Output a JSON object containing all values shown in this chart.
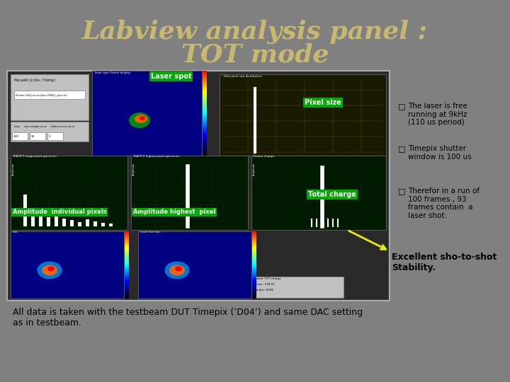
{
  "title_line1": "Labview analysis panel :",
  "title_line2": "TOT mode",
  "title_color": "#c8b870",
  "bg_color": "#808080",
  "panel_bg": "#5a5a5a",
  "panel_border": "#888888",
  "bullet_points": [
    "The laser is free\nrunning at 9kHz\n(110 us period)",
    "Timepix shutter\nwindow is 100 us",
    "Therefor in a run of\n100 frames , 93\nframes contain  a\nlaser shot."
  ],
  "stability_text": "Excellent sho-to-shot\nStability.",
  "bottom_text": "All data is taken with the testbeam DUT Timepix (’D04’) and same DAC setting\nas in testbeam.",
  "label_laser_spot": "Laser spot",
  "label_pixel_size": "Pixel size",
  "label_total_charge": "Total charge",
  "label_amp_individual": "Amplitude  individual pixels",
  "label_amp_highest": "Amplitude highest  pixel",
  "green_label_bg": "#00aa00",
  "green_label_text": "#ffffff"
}
